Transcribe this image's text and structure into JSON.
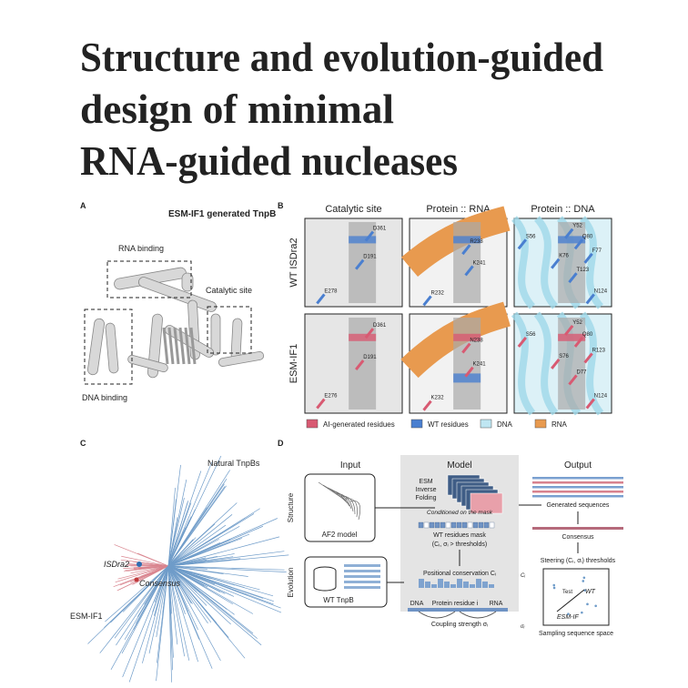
{
  "title_lines": [
    "Structure and evolution-guided",
    "design of minimal",
    "RNA-guided nucleases"
  ],
  "panel_a": {
    "label": "A",
    "title": "ESM-IF1 generated TnpB",
    "regions": [
      "RNA binding",
      "Catalytic site",
      "DNA binding"
    ]
  },
  "panel_b": {
    "label": "B",
    "columns": [
      "Catalytic site",
      "Protein :: RNA",
      "Protein :: DNA"
    ],
    "rows": [
      {
        "name": "WT ISDra2",
        "residues": [
          [
            "D361",
            "D191",
            "E278"
          ],
          [
            "R238",
            "K241",
            "R232"
          ],
          [
            "S56",
            "Y52",
            "Q80",
            "K76",
            "F77",
            "T123",
            "N124"
          ]
        ]
      },
      {
        "name": "ESM-IF1",
        "residues": [
          [
            "D361",
            "D191",
            "E276"
          ],
          [
            "N238",
            "K241",
            "K232"
          ],
          [
            "S56",
            "Y52",
            "Q80",
            "S76",
            "R123",
            "D77",
            "N124"
          ]
        ]
      }
    ],
    "legend": [
      "AI-generated residues",
      "WT residues",
      "DNA",
      "RNA"
    ]
  },
  "panel_c": {
    "label": "C",
    "labels": [
      "Natural TnpBs",
      "ISDra2",
      "Consensus",
      "ESM-IF1"
    ]
  },
  "panel_d": {
    "label": "D",
    "columns": [
      "Input",
      "Model",
      "Output"
    ],
    "rows": [
      "Structure",
      "Evolution"
    ],
    "input": [
      "AF2 model",
      "WT TnpB"
    ],
    "model": [
      "ESM",
      "Inverse",
      "Folding",
      "Conditioned on the mask",
      "WT residues mask",
      "(Cᵢ, σᵢ > thresholds)",
      "Positional conservation Cᵢ",
      "DNA",
      "Protein residue i",
      "RNA",
      "Coupling strength σᵢ",
      "Cᵢ",
      "σᵢ"
    ],
    "output": [
      "Generated sequences",
      "Consensus",
      "Steering (Cᵢ, σᵢ) thresholds",
      "Test",
      "WT",
      "ESM-IF",
      "Sampling sequence space"
    ]
  }
}
